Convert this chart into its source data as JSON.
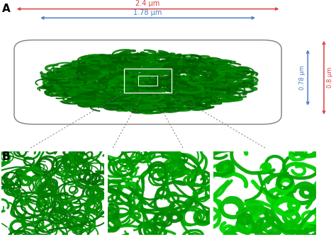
{
  "label_A": "A",
  "label_B": "B",
  "dim_24": "2.4 μm",
  "dim_178": "1.78 μm",
  "dim_078": "0.78 μm",
  "dim_08": "0.8 μm",
  "arrow_red_color": "#d94040",
  "arrow_blue_color": "#4a7bc8",
  "bg_color": "#ffffff",
  "ellipse_edge_color": "#888888",
  "chrom_color_dark": "#006600",
  "chrom_color_mid": "#007f00",
  "cell_inner_bg": "#ffffff",
  "panel_bg": "#050d05",
  "panel1_green": "#007700",
  "panel2_green": "#00aa00",
  "panel3_green": "#00cc00"
}
